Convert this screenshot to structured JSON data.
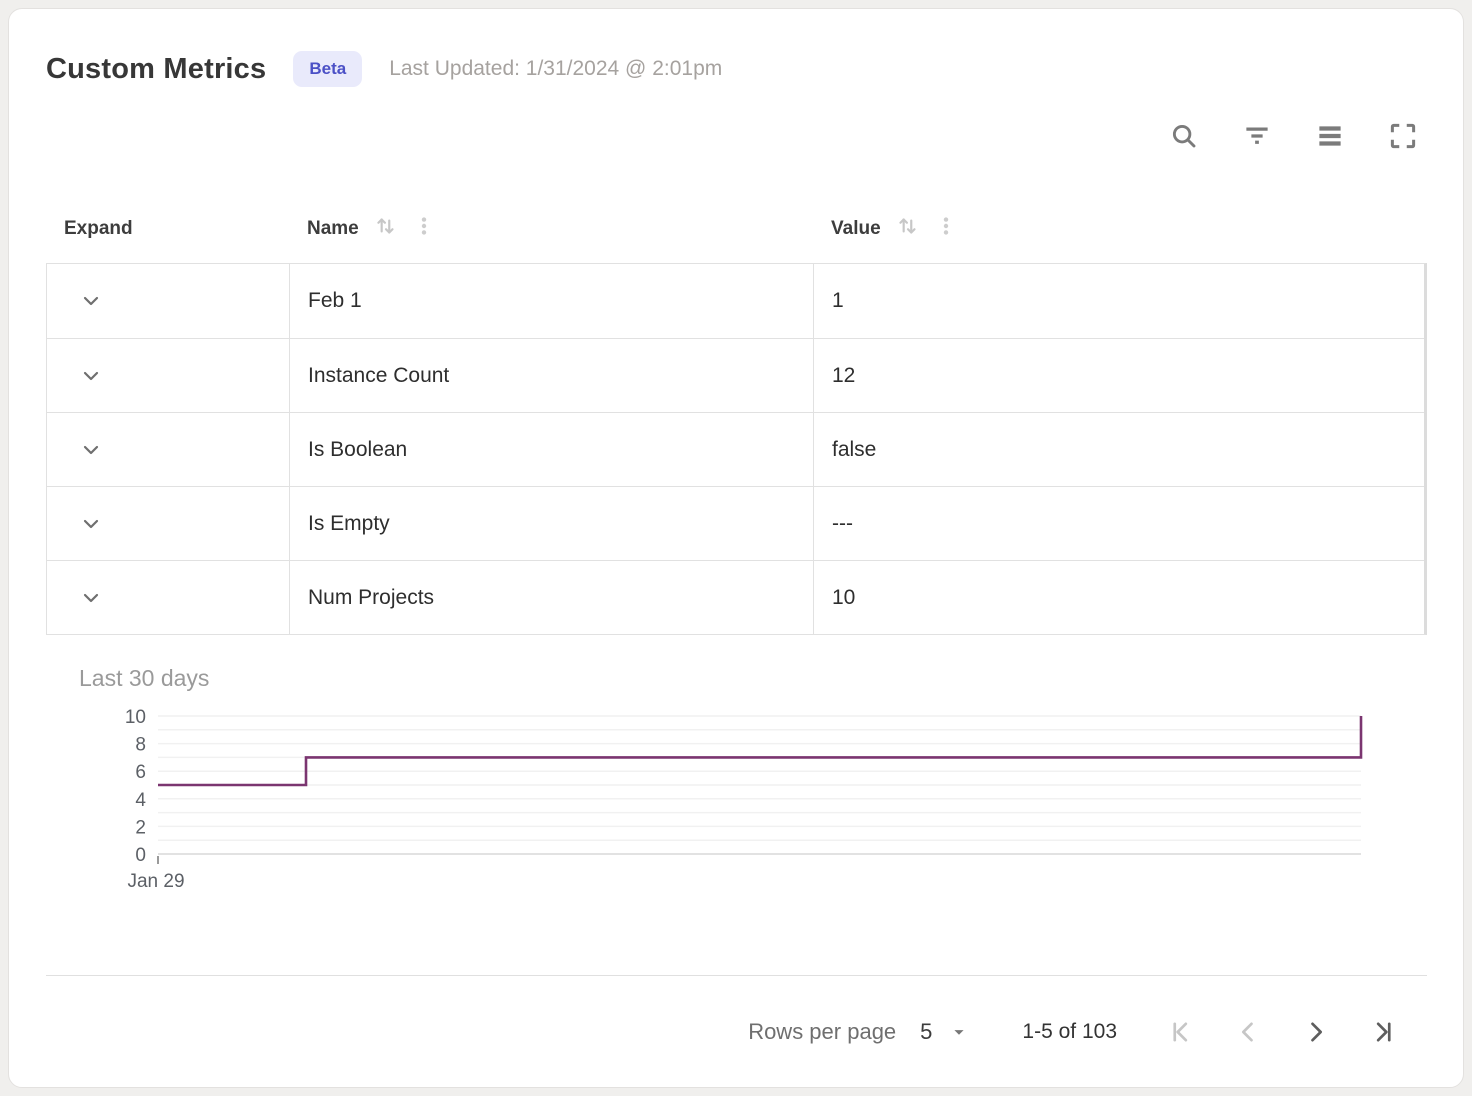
{
  "header": {
    "title": "Custom Metrics",
    "badge": "Beta",
    "last_updated": "Last Updated: 1/31/2024 @ 2:01pm"
  },
  "toolbar": {
    "icons": [
      "search-icon",
      "filter-icon",
      "density-icon",
      "fullscreen-icon"
    ]
  },
  "table": {
    "columns": [
      {
        "label": "Expand",
        "sortable": false
      },
      {
        "label": "Name",
        "sortable": true
      },
      {
        "label": "Value",
        "sortable": true
      }
    ],
    "rows": [
      {
        "name": "Feb 1",
        "value": "1",
        "expanded": false
      },
      {
        "name": "Instance Count",
        "value": "12",
        "expanded": false
      },
      {
        "name": "Is Boolean",
        "value": "false",
        "expanded": false
      },
      {
        "name": "Is Empty",
        "value": "---",
        "expanded": false
      },
      {
        "name": "Num Projects",
        "value": "10",
        "expanded": true
      }
    ]
  },
  "detail_panel": {
    "title": "Last 30 days"
  },
  "chart_data": {
    "type": "line",
    "subtype": "step",
    "title": "Last 30 days",
    "xlabel": "",
    "ylabel": "",
    "ylim": [
      0,
      10
    ],
    "y_ticks": [
      0,
      2,
      4,
      6,
      8,
      10
    ],
    "x_tick_labels": [
      "Jan 29"
    ],
    "grid": true,
    "legend": "none",
    "line_color": "#7b3570",
    "points": [
      {
        "x_frac": 0.0,
        "y": 5
      },
      {
        "x_frac": 0.123,
        "y": 5
      },
      {
        "x_frac": 0.123,
        "y": 7
      },
      {
        "x_frac": 1.0,
        "y": 7
      },
      {
        "x_frac": 1.0,
        "y": 10
      }
    ]
  },
  "pagination": {
    "rows_per_page_label": "Rows per page",
    "rows_per_page_value": "5",
    "range_label": "1-5 of 103",
    "first_disabled": true,
    "prev_disabled": true,
    "next_disabled": false,
    "last_disabled": false
  },
  "colors": {
    "accent_badge_bg": "#e9eafb",
    "accent_badge_text": "#4b50c6",
    "chart_line": "#7b3570",
    "grid_line": "#f1f1f1",
    "axis_line": "#e2e2e2",
    "border": "#e1e1e1",
    "muted_text": "#a6a29f",
    "icon_gray": "#7b7b7b"
  }
}
